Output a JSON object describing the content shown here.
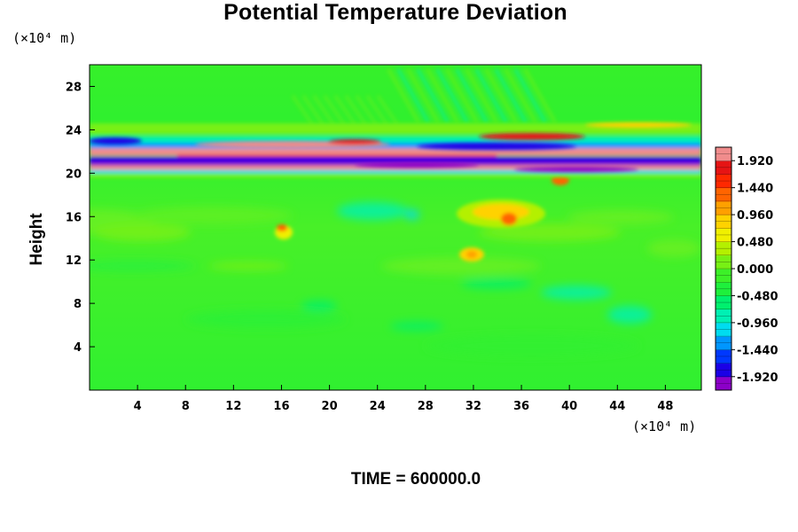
{
  "chart_data": {
    "type": "heatmap",
    "title": "Potential Temperature Deviation",
    "ylabel": "Height",
    "x_unit_label": "(×10⁴ m)",
    "y_unit_label": "(×10⁴ m)",
    "footer": "TIME = 600000.0",
    "x_ticks": [
      4,
      8,
      12,
      16,
      20,
      24,
      28,
      32,
      36,
      40,
      44,
      48
    ],
    "y_ticks": [
      4,
      8,
      12,
      16,
      20,
      24,
      28
    ],
    "xlim": [
      0,
      51
    ],
    "ylim": [
      0,
      30
    ],
    "colorbar": {
      "ticks": [
        "1.920",
        "1.440",
        "0.960",
        "0.480",
        "0.000",
        "-0.480",
        "-0.960",
        "-1.440",
        "-1.920"
      ],
      "range": [
        -2.16,
        2.16
      ],
      "colors": [
        "#8c00c8",
        "#1b00e6",
        "#0038ff",
        "#0096ff",
        "#00dcf0",
        "#00f0b4",
        "#00f06e",
        "#1ef03c",
        "#3cf028",
        "#78f014",
        "#b4f000",
        "#f0f000",
        "#ffd200",
        "#ffa000",
        "#ff6400",
        "#ff2800",
        "#e61414",
        "#f08c8c"
      ]
    },
    "field_features": [
      {
        "name": "upper-warm-band",
        "y": 21.3,
        "value": 1.9
      },
      {
        "name": "upper-cold-band",
        "y": 20.5,
        "value": -1.9
      },
      {
        "name": "warm-patch-near-x35",
        "x": 35,
        "y": 15.5,
        "value": 1.2
      },
      {
        "name": "warm-patch-near-x16",
        "x": 16,
        "y": 14.5,
        "value": 1.0
      },
      {
        "name": "warm-patch-near-x32",
        "x": 32,
        "y": 12.5,
        "value": 0.9
      }
    ]
  }
}
